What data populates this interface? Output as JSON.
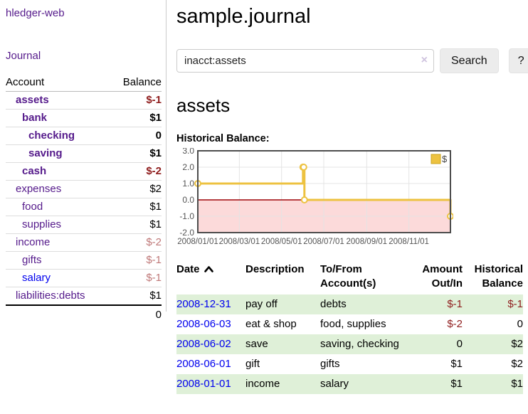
{
  "app": {
    "brand": "hledger-web"
  },
  "sidebar": {
    "journal_label": "Journal",
    "accounts_header": {
      "account": "Account",
      "balance": "Balance"
    },
    "accounts": [
      {
        "name": "assets",
        "depth": 1,
        "balance": "$-1",
        "bold": true,
        "negative": "strong"
      },
      {
        "name": "bank",
        "depth": 2,
        "balance": "$1",
        "bold": true
      },
      {
        "name": "checking",
        "depth": 3,
        "balance": "0",
        "bold": true
      },
      {
        "name": "saving",
        "depth": 3,
        "balance": "$1",
        "bold": true
      },
      {
        "name": "cash",
        "depth": 2,
        "balance": "$-2",
        "bold": true,
        "negative": "strong"
      },
      {
        "name": "expenses",
        "depth": 1,
        "balance": "$2"
      },
      {
        "name": "food",
        "depth": 2,
        "balance": "$1"
      },
      {
        "name": "supplies",
        "depth": 2,
        "balance": "$1"
      },
      {
        "name": "income",
        "depth": 1,
        "balance": "$-2",
        "negative": "soft"
      },
      {
        "name": "gifts",
        "depth": 2,
        "balance": "$-1",
        "negative": "soft"
      },
      {
        "name": "salary",
        "depth": 2,
        "balance": "$-1",
        "negative": "soft",
        "link_color": "blue"
      },
      {
        "name": "liabilities:debts",
        "depth": 1,
        "balance": "$1"
      }
    ],
    "total": "0"
  },
  "header": {
    "title": "sample.journal"
  },
  "search": {
    "value": "inacct:assets",
    "clear_icon": "×",
    "button_label": "Search",
    "help_label": "?"
  },
  "account_page": {
    "title": "assets",
    "chart_heading": "Historical Balance:"
  },
  "chart_data": {
    "type": "line",
    "step": true,
    "title": "Historical Balance:",
    "series": [
      {
        "name": "$",
        "color": "#edc240",
        "points": [
          [
            "2008-01-01",
            1
          ],
          [
            "2008-06-01",
            2
          ],
          [
            "2008-06-02",
            2
          ],
          [
            "2008-06-03",
            0
          ],
          [
            "2008-12-31",
            -1
          ]
        ]
      }
    ],
    "x_range": [
      "2008-01-01",
      "2008-12-31"
    ],
    "x_ticks": [
      "2008/01/01",
      "2008/03/01",
      "2008/05/01",
      "2008/07/01",
      "2008/09/01",
      "2008/11/01"
    ],
    "y_ticks": [
      3.0,
      2.0,
      1.0,
      0.0,
      -1.0,
      -2.0
    ],
    "ylim": [
      -2,
      3
    ],
    "legend": "$",
    "legend_position": "top-right",
    "grid": true,
    "colors": {
      "line": "#edc240",
      "marker_fill": "#ffffff",
      "negative_region_fill": "#fcdada",
      "zero_line": "#9e0508",
      "gridline": "#e4e4e4",
      "plot_border": "#4d4d4d",
      "axis_text": "#545454"
    }
  },
  "register": {
    "headers": {
      "date": "Date",
      "description": "Description",
      "tofrom_line1": "To/From",
      "tofrom_line2": "Account(s)",
      "amount_line1": "Amount",
      "amount_line2": "Out/In",
      "hist_line1": "Historical",
      "hist_line2": "Balance"
    },
    "sort_icon": "chevron-up-icon",
    "rows": [
      {
        "date": "2008-12-31",
        "description": "pay off",
        "accounts": "debts",
        "amount": "$-1",
        "amount_neg": true,
        "balance": "$-1",
        "balance_neg": true
      },
      {
        "date": "2008-06-03",
        "description": "eat & shop",
        "accounts": "food, supplies",
        "amount": "$-2",
        "amount_neg": true,
        "balance": "0",
        "balance_neg": false
      },
      {
        "date": "2008-06-02",
        "description": "save",
        "accounts": "saving, checking",
        "amount": "0",
        "amount_neg": false,
        "balance": "$2",
        "balance_neg": false
      },
      {
        "date": "2008-06-01",
        "description": "gift",
        "accounts": "gifts",
        "amount": "$1",
        "amount_neg": false,
        "balance": "$2",
        "balance_neg": false
      },
      {
        "date": "2008-01-01",
        "description": "income",
        "accounts": "salary",
        "amount": "$1",
        "amount_neg": false,
        "balance": "$1",
        "balance_neg": false
      }
    ]
  }
}
